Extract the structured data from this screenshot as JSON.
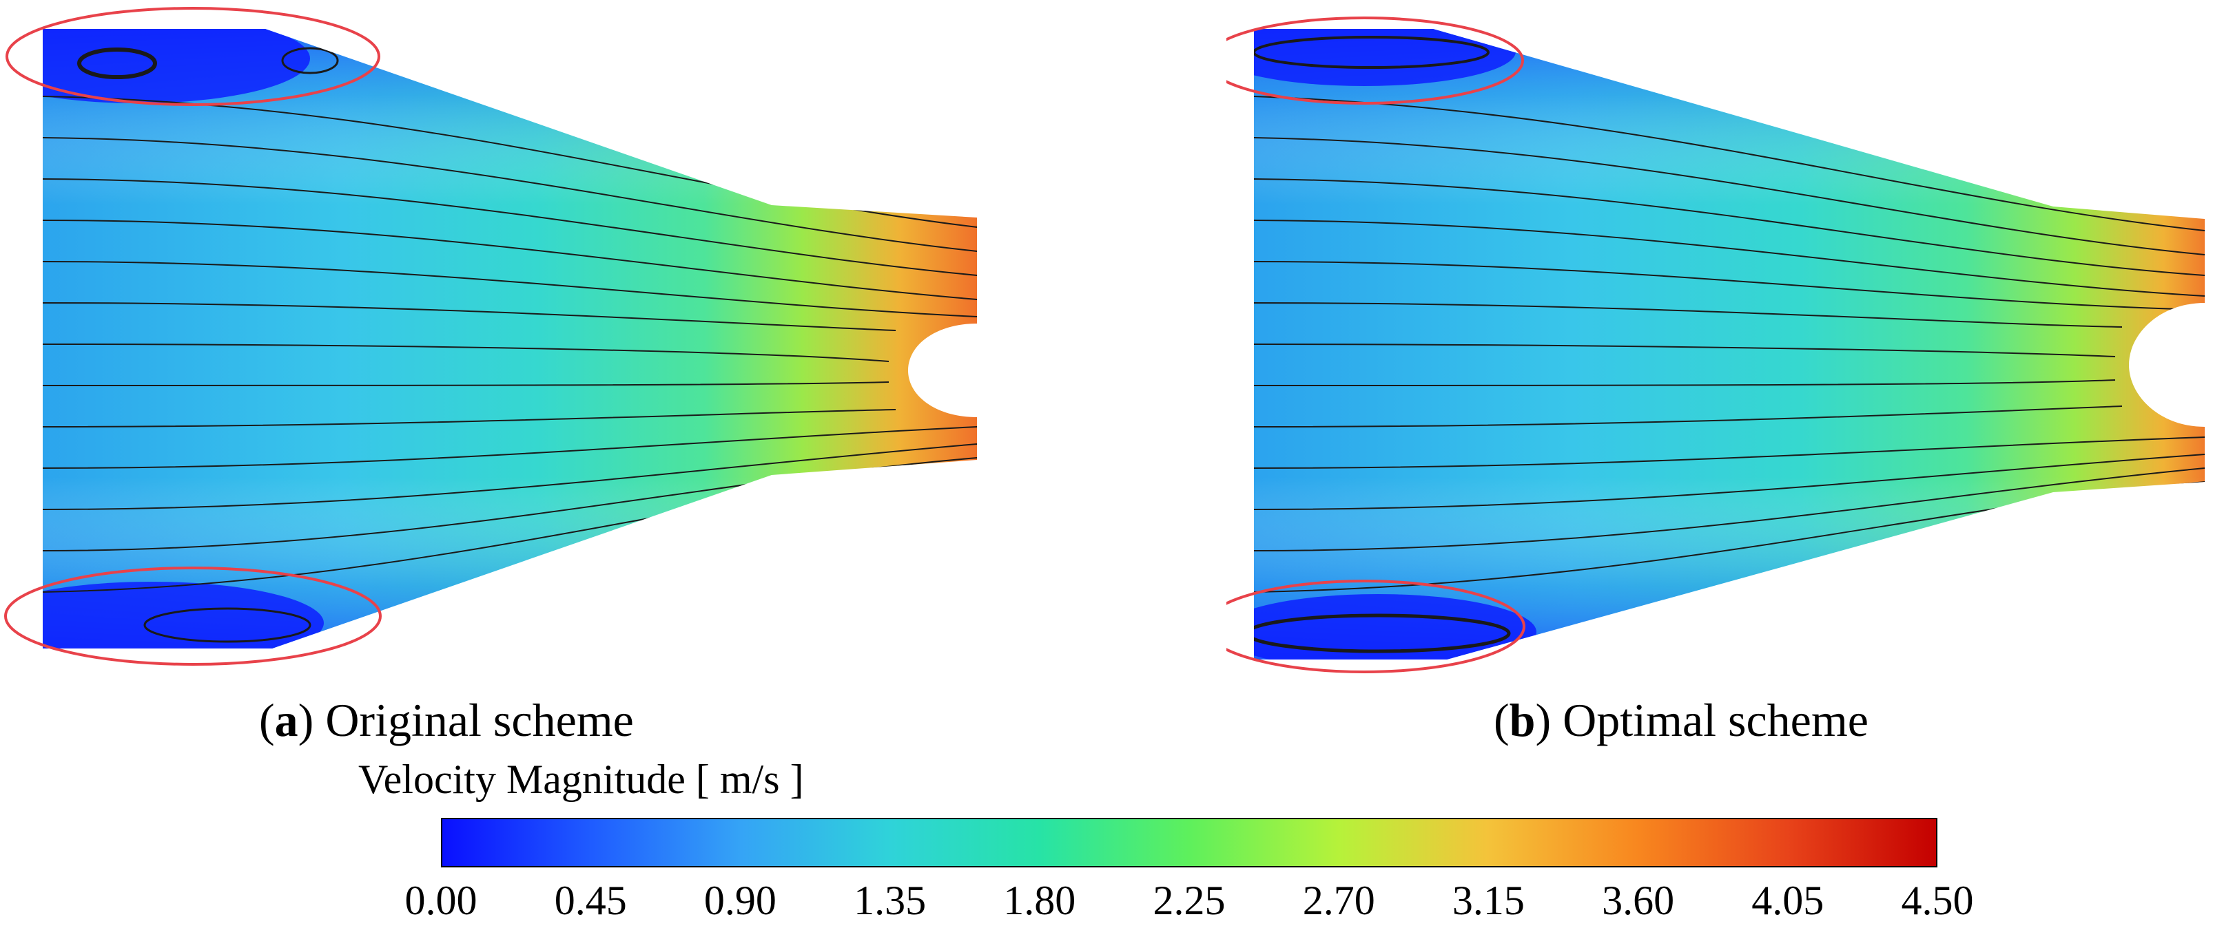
{
  "panels": [
    {
      "label": "a",
      "text": "Original scheme"
    },
    {
      "label": "b",
      "text": "Optimal scheme"
    }
  ],
  "legend": {
    "title": "Velocity Magnitude [ m/s ]",
    "min": 0.0,
    "max": 4.5,
    "ticks": [
      "0.00",
      "0.45",
      "0.90",
      "1.35",
      "1.80",
      "2.25",
      "2.70",
      "3.15",
      "3.60",
      "4.05",
      "4.50"
    ],
    "colors": [
      "#0a10ff",
      "#1f5cff",
      "#35a4f6",
      "#2fd3d9",
      "#27e3a6",
      "#5ef05c",
      "#b6f23a",
      "#f4c33a",
      "#f8871f",
      "#e8441a",
      "#c40000"
    ]
  },
  "colors": {
    "highlight_ellipse": "#e8424a",
    "streamline": "#1a1a1a"
  }
}
